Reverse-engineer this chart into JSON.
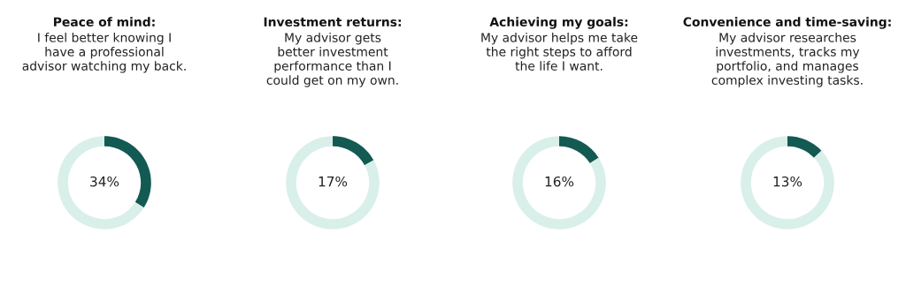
{
  "chart_data": [
    {
      "type": "donut",
      "title": "Peace of mind:",
      "subtitle": "I feel better knowing I\nhave a professional\nadvisor watching my back.",
      "categories": [
        null,
        null
      ],
      "values": [
        34,
        66
      ],
      "colors": [
        "#135a53",
        "#d9efea"
      ],
      "value_labels": [
        "34%",
        null
      ]
    },
    {
      "type": "donut",
      "title": "Investment returns:",
      "subtitle": "My advisor gets\nbetter investment\nperformance than I\ncould get on my own.",
      "categories": [
        null,
        null
      ],
      "values": [
        17,
        83
      ],
      "colors": [
        "#135a53",
        "#d9efea"
      ],
      "value_labels": [
        "17%",
        null
      ]
    },
    {
      "type": "donut",
      "title": "Achieving my goals:",
      "subtitle": "My advisor helps me take\nthe right steps to afford\nthe life I want.",
      "categories": [
        null,
        null
      ],
      "values": [
        16,
        84
      ],
      "colors": [
        "#135a53",
        "#d9efea"
      ],
      "value_labels": [
        "16%",
        null
      ]
    },
    {
      "type": "donut",
      "title": "Convenience and time-saving:",
      "subtitle": "My advisor researches\ninvestments, tracks my\nportfolio, and manages\ncomplex investing tasks.",
      "categories": [
        null,
        null
      ],
      "values": [
        13,
        87
      ],
      "colors": [
        "#135a53",
        "#d9efea"
      ],
      "value_labels": [
        "13%",
        null
      ]
    }
  ]
}
